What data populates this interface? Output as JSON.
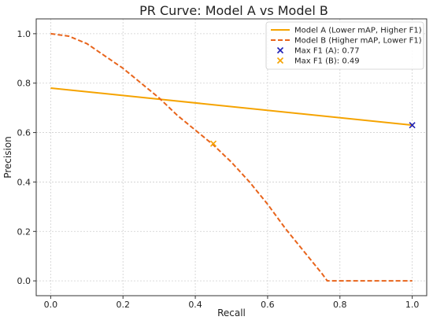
{
  "chart_data": {
    "type": "line",
    "title": "PR Curve: Model A vs Model B",
    "xlabel": "Recall",
    "ylabel": "Precision",
    "xlim": [
      -0.04,
      1.04
    ],
    "ylim": [
      -0.06,
      1.06
    ],
    "x_ticks": [
      0.0,
      0.2,
      0.4,
      0.6,
      0.8,
      1.0
    ],
    "y_ticks": [
      0.0,
      0.2,
      0.4,
      0.6,
      0.8,
      1.0
    ],
    "x_tick_labels": [
      "0.0",
      "0.2",
      "0.4",
      "0.6",
      "0.8",
      "1.0"
    ],
    "y_tick_labels": [
      "0.0",
      "0.2",
      "0.4",
      "0.6",
      "0.8",
      "1.0"
    ],
    "grid": true,
    "legend_position": "top-right",
    "series": [
      {
        "name": "Model A (Lower mAP, Higher F1)",
        "style": "solid",
        "color": "#F5A300",
        "x": [
          0.0,
          1.0
        ],
        "y": [
          0.78,
          0.63
        ]
      },
      {
        "name": "Model B (Higher mAP, Lower F1)",
        "style": "dashed",
        "color": "#E8641B",
        "x": [
          0.0,
          0.05,
          0.1,
          0.15,
          0.2,
          0.25,
          0.3,
          0.35,
          0.4,
          0.45,
          0.5,
          0.55,
          0.6,
          0.65,
          0.7,
          0.75,
          0.765,
          0.8,
          0.9,
          1.0
        ],
        "y": [
          1.0,
          0.99,
          0.96,
          0.91,
          0.86,
          0.8,
          0.74,
          0.67,
          0.61,
          0.55,
          0.48,
          0.4,
          0.31,
          0.21,
          0.12,
          0.03,
          0.0,
          0.0,
          0.0,
          0.0
        ]
      }
    ],
    "markers": [
      {
        "label": "Max F1 (A): 0.77",
        "x": 1.0,
        "y": 0.63,
        "color": "#1F1FB4",
        "symbol": "x"
      },
      {
        "label": "Max F1 (B): 0.49",
        "x": 0.45,
        "y": 0.555,
        "color": "#F5A300",
        "symbol": "x"
      }
    ]
  }
}
